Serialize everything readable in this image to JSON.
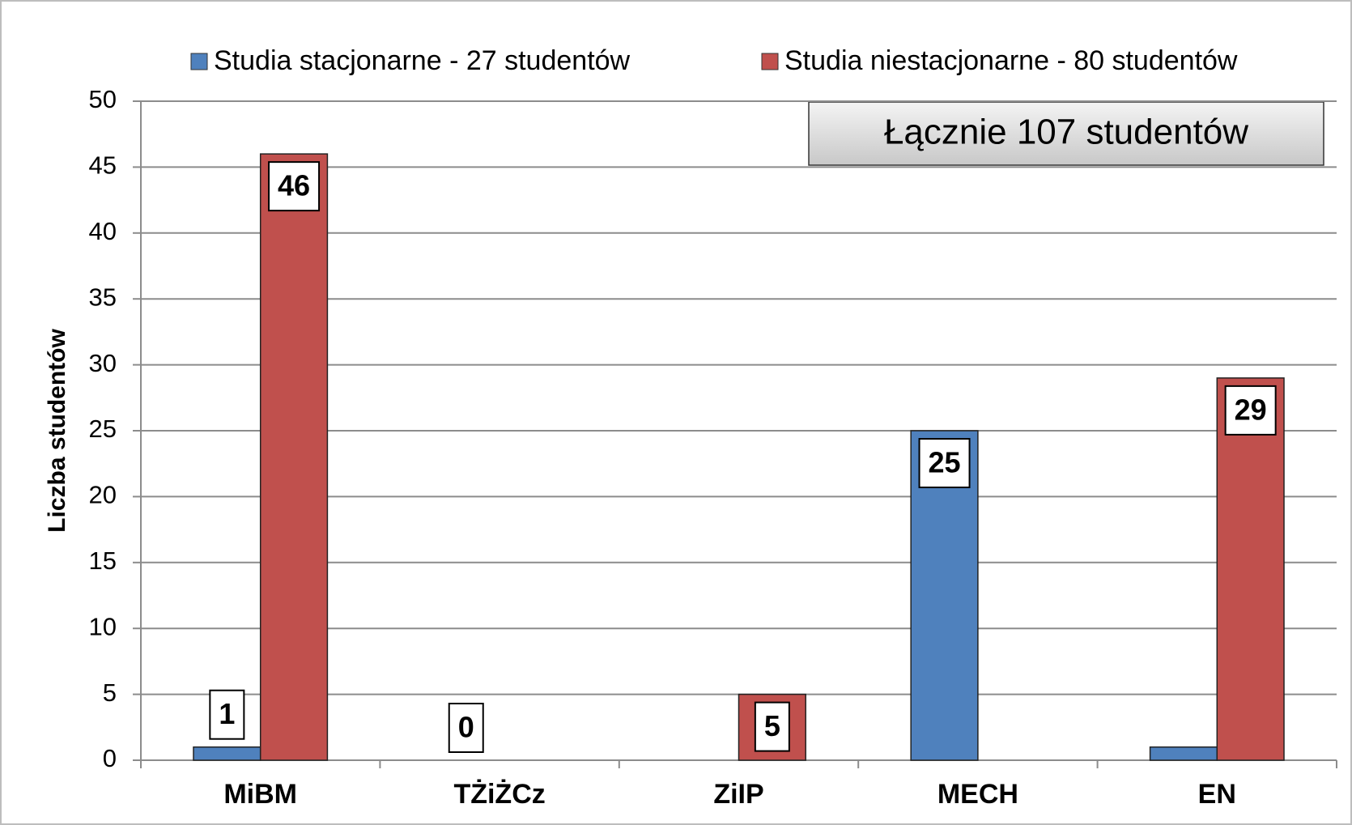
{
  "chart_data": {
    "type": "bar",
    "ylabel": "Liczba studentów",
    "annotation": "Łącznie 107 studentów",
    "categories": [
      "MiBM",
      "TŻiŻCz",
      "ZiIP",
      "MECH",
      "EN"
    ],
    "series": [
      {
        "name": "Studia stacjonarne - 27 studentów",
        "color": "#4f81bd",
        "values": [
          1,
          0,
          0,
          25,
          1
        ],
        "value_labels": [
          "1",
          "0",
          null,
          "25",
          null
        ]
      },
      {
        "name": "Studia niestacjonarne - 80 studentów",
        "color": "#c0504d",
        "values": [
          46,
          0,
          5,
          0,
          29
        ],
        "value_labels": [
          "46",
          null,
          "5",
          null,
          "29"
        ]
      }
    ],
    "ylim": [
      0,
      50
    ],
    "yticks": [
      0,
      5,
      10,
      15,
      20,
      25,
      30,
      35,
      40,
      45,
      50
    ],
    "grid": true,
    "legend": "top"
  }
}
